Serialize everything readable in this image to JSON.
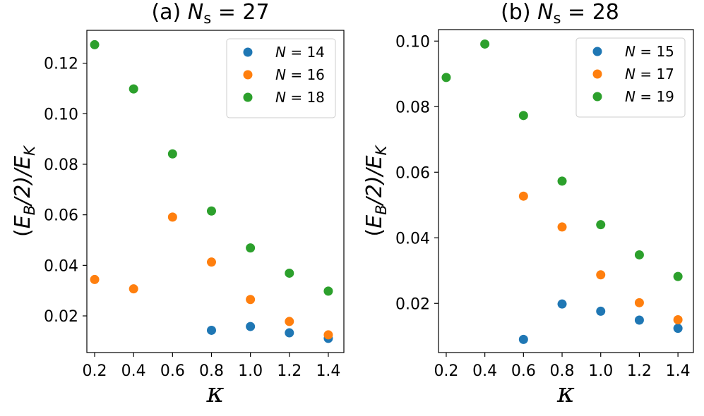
{
  "chart_data": [
    {
      "type": "scatter",
      "title": "(a) N_s = 27",
      "title_parts": {
        "prefix": "(a) ",
        "var": "N",
        "sub": "s",
        "suffix": " = 27"
      },
      "xlabel": "κ",
      "ylabel_parts": {
        "open": "(",
        "var_e": "E",
        "sub_b": "B",
        "mid": "/2)/",
        "var_e2": "E",
        "sub_k": "K"
      },
      "xlim": [
        0.16,
        1.48
      ],
      "ylim": [
        0.0055,
        0.133
      ],
      "xticks": [
        "0.2",
        "0.4",
        "0.6",
        "0.8",
        "1.0",
        "1.2",
        "1.4"
      ],
      "xtick_values": [
        0.2,
        0.4,
        0.6,
        0.8,
        1.0,
        1.2,
        1.4
      ],
      "yticks": [
        "0.02",
        "0.04",
        "0.06",
        "0.08",
        "0.10",
        "0.12"
      ],
      "ytick_values": [
        0.02,
        0.04,
        0.06,
        0.08,
        0.1,
        0.12
      ],
      "legend_position": "top-right",
      "series": [
        {
          "name": "N = 14",
          "label_var": "N",
          "label_rest": " = 14",
          "color": "#1f77b4",
          "x": [
            0.8,
            1.0,
            1.2,
            1.4
          ],
          "y": [
            0.0143,
            0.0158,
            0.0133,
            0.0111
          ]
        },
        {
          "name": "N = 16",
          "label_var": "N",
          "label_rest": " = 16",
          "color": "#ff7f0e",
          "x": [
            0.2,
            0.4,
            0.6,
            0.8,
            1.0,
            1.2,
            1.4
          ],
          "y": [
            0.0344,
            0.0307,
            0.0591,
            0.0413,
            0.0265,
            0.0178,
            0.0125
          ]
        },
        {
          "name": "N = 18",
          "label_var": "N",
          "label_rest": " = 18",
          "color": "#2ca02c",
          "x": [
            0.2,
            0.4,
            0.6,
            0.8,
            1.0,
            1.2,
            1.4
          ],
          "y": [
            0.1273,
            0.1098,
            0.0841,
            0.0615,
            0.0469,
            0.0369,
            0.0298
          ]
        }
      ]
    },
    {
      "type": "scatter",
      "title": "(b) N_s = 28",
      "title_parts": {
        "prefix": "(b) ",
        "var": "N",
        "sub": "s",
        "suffix": " = 28"
      },
      "xlabel": "κ",
      "ylabel_parts": {
        "open": "(",
        "var_e": "E",
        "sub_b": "B",
        "mid": "/2)/",
        "var_e2": "E",
        "sub_k": "K"
      },
      "xlim": [
        0.16,
        1.48
      ],
      "ylim": [
        0.005,
        0.1035
      ],
      "xticks": [
        "0.2",
        "0.4",
        "0.6",
        "0.8",
        "1.0",
        "1.2",
        "1.4"
      ],
      "xtick_values": [
        0.2,
        0.4,
        0.6,
        0.8,
        1.0,
        1.2,
        1.4
      ],
      "yticks": [
        "0.02",
        "0.04",
        "0.06",
        "0.08",
        "0.10"
      ],
      "ytick_values": [
        0.02,
        0.04,
        0.06,
        0.08,
        0.1
      ],
      "legend_position": "top-right",
      "series": [
        {
          "name": "N = 15",
          "label_var": "N",
          "label_rest": " = 15",
          "color": "#1f77b4",
          "x": [
            0.6,
            0.8,
            1.0,
            1.2,
            1.4
          ],
          "y": [
            0.009,
            0.0198,
            0.0176,
            0.0149,
            0.0124
          ]
        },
        {
          "name": "N = 17",
          "label_var": "N",
          "label_rest": " = 17",
          "color": "#ff7f0e",
          "x": [
            0.6,
            0.8,
            1.0,
            1.2,
            1.4
          ],
          "y": [
            0.0527,
            0.0433,
            0.0287,
            0.0202,
            0.015
          ]
        },
        {
          "name": "N = 19",
          "label_var": "N",
          "label_rest": " = 19",
          "color": "#2ca02c",
          "x": [
            0.2,
            0.4,
            0.6,
            0.8,
            1.0,
            1.2,
            1.4
          ],
          "y": [
            0.0889,
            0.0991,
            0.0773,
            0.0573,
            0.044,
            0.0348,
            0.0282
          ]
        }
      ]
    }
  ]
}
